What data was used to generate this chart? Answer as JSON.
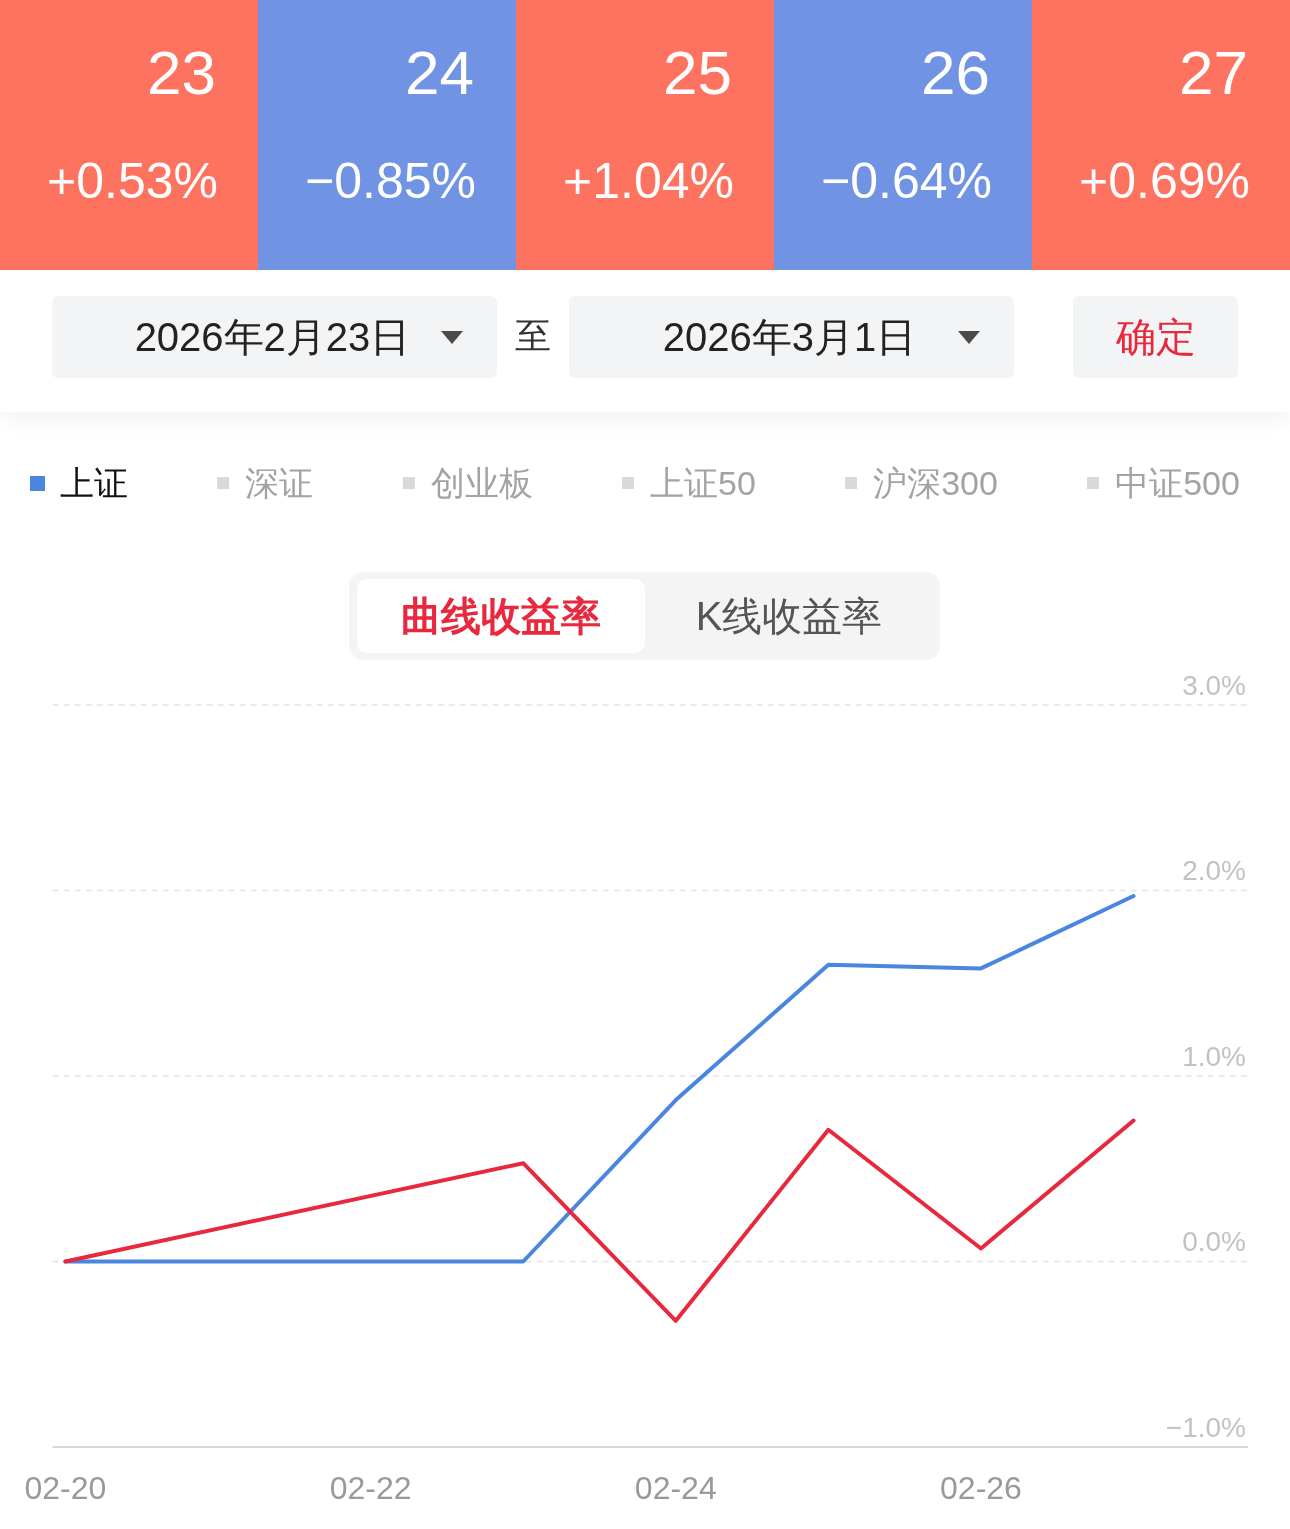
{
  "chart_data": [
    {
      "type": "heatmap",
      "categories": [
        "23",
        "24",
        "25",
        "26",
        "27"
      ],
      "y_categories": [
        null
      ],
      "cells": [
        [
          0.53,
          -0.85,
          1.04,
          -0.64,
          0.69
        ]
      ],
      "cell_labels": [
        [
          "+0.53%",
          "−0.85%",
          "+1.04%",
          "−0.64%",
          "+0.69%"
        ]
      ],
      "annotations": [
        "2026年2月23日",
        "至",
        "2026年3月1日",
        "确定"
      ]
    },
    {
      "type": "line",
      "x": [
        "2026-02-20",
        "2026-02-23",
        "2026-02-24",
        "2026-02-25",
        "2026-02-26",
        "2026-02-27"
      ],
      "series": [
        {
          "name": "上证",
          "color": "#4a86e0",
          "values": [
            0,
            0,
            0.87,
            1.6,
            1.58,
            1.97
          ]
        },
        {
          "color": "#e8293d",
          "values": [
            0,
            0.53,
            -0.32,
            0.71,
            0.07,
            0.76
          ]
        }
      ],
      "xlim": [
        "2026-02-19T22:00",
        "2026-02-27T18:00"
      ],
      "xticks": [
        {
          "value": "2026-02-20",
          "label": "02-20"
        },
        {
          "value": "2026-02-22",
          "label": "02-22"
        },
        {
          "value": "2026-02-24",
          "label": "02-24"
        },
        {
          "value": "2026-02-26",
          "label": "02-26"
        }
      ],
      "ylim": [
        -1,
        3
      ],
      "yticks": [
        {
          "value": -1,
          "label": "−1.0%"
        },
        {
          "value": 0,
          "label": "0.0%"
        },
        {
          "value": 1,
          "label": "1.0%"
        },
        {
          "value": 2,
          "label": "2.0%"
        },
        {
          "value": 3,
          "label": "3.0%"
        }
      ],
      "grid": "y",
      "legend": "top left",
      "annotations": [
        "深证",
        "创业板",
        "上证50",
        "沪深300",
        "中证500",
        "曲线收益率",
        "K线收益率"
      ]
    }
  ]
}
